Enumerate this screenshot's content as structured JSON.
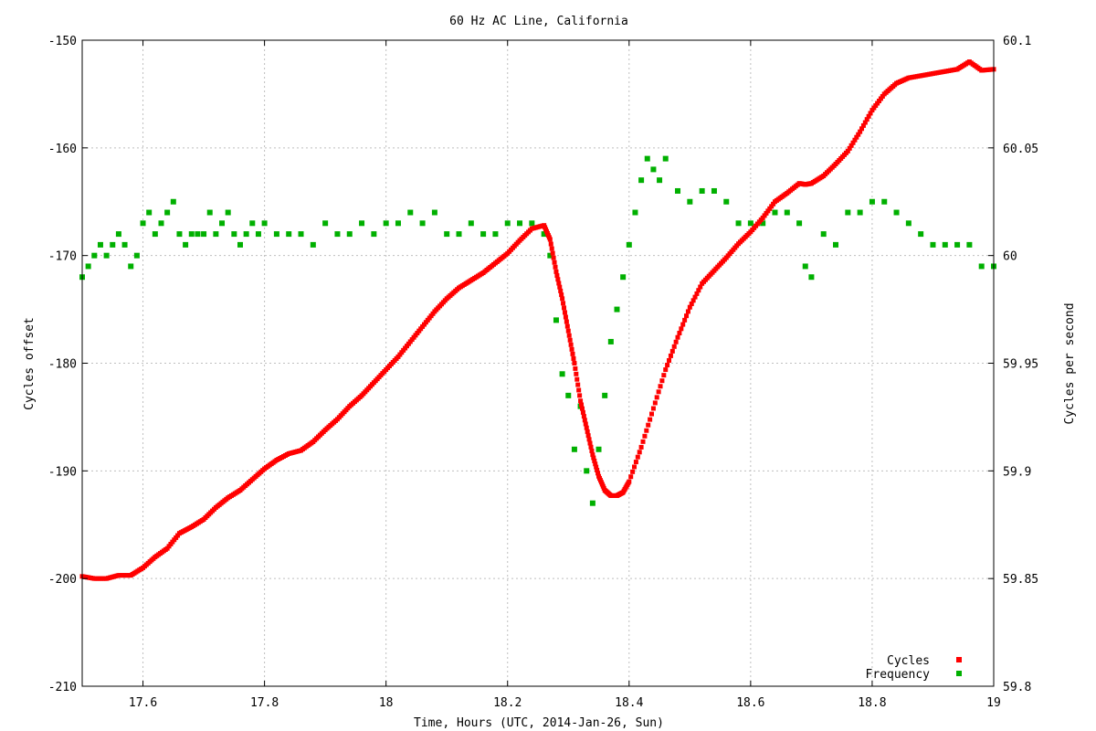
{
  "chart_data": {
    "type": "scatter",
    "title": "60 Hz AC Line, California",
    "xlabel": "Time, Hours (UTC, 2014-Jan-26, Sun)",
    "ylabel_left": "Cycles offset",
    "ylabel_right": "Cycles per second",
    "xlim": [
      17.5,
      19.0
    ],
    "ylim_left": [
      -210,
      -150
    ],
    "ylim_right": [
      59.8,
      60.1
    ],
    "x_ticks": [
      17.6,
      17.8,
      18.0,
      18.2,
      18.4,
      18.6,
      18.8,
      19.0
    ],
    "x_tick_labels": [
      "17.6",
      "17.8",
      "18",
      "18.2",
      "18.4",
      "18.6",
      "18.8",
      "19"
    ],
    "y_left_ticks": [
      -210,
      -200,
      -190,
      -180,
      -170,
      -160,
      -150
    ],
    "y_left_tick_labels": [
      "-210",
      "-200",
      "-190",
      "-180",
      "-170",
      "-160",
      "-150"
    ],
    "y_right_ticks": [
      59.8,
      59.85,
      59.9,
      59.95,
      60.0,
      60.05,
      60.1
    ],
    "y_right_tick_labels": [
      "59.8",
      "59.85",
      "59.9",
      "59.95",
      "60",
      "60.05",
      "60.1"
    ],
    "grid": true,
    "legend_position": "bottom-right",
    "series": [
      {
        "name": "Cycles",
        "axis": "left",
        "color": "#ff0000",
        "x": [
          17.5,
          17.52,
          17.54,
          17.56,
          17.58,
          17.6,
          17.62,
          17.64,
          17.66,
          17.68,
          17.7,
          17.72,
          17.74,
          17.76,
          17.78,
          17.8,
          17.82,
          17.84,
          17.86,
          17.88,
          17.9,
          17.92,
          17.94,
          17.96,
          17.98,
          18.0,
          18.02,
          18.04,
          18.06,
          18.08,
          18.1,
          18.12,
          18.14,
          18.16,
          18.18,
          18.2,
          18.22,
          18.24,
          18.26,
          18.27,
          18.28,
          18.29,
          18.3,
          18.31,
          18.32,
          18.33,
          18.34,
          18.35,
          18.36,
          18.37,
          18.38,
          18.39,
          18.4,
          18.42,
          18.44,
          18.46,
          18.48,
          18.5,
          18.52,
          18.54,
          18.56,
          18.58,
          18.6,
          18.62,
          18.64,
          18.66,
          18.68,
          18.69,
          18.7,
          18.72,
          18.74,
          18.76,
          18.78,
          18.8,
          18.82,
          18.84,
          18.86,
          18.88,
          18.9,
          18.92,
          18.94,
          18.96,
          18.98,
          19.0
        ],
        "y": [
          -199.8,
          -200.0,
          -200.0,
          -199.7,
          -199.7,
          -199.0,
          -198.0,
          -197.2,
          -195.8,
          -195.2,
          -194.5,
          -193.4,
          -192.5,
          -191.8,
          -190.8,
          -189.8,
          -189.0,
          -188.4,
          -188.1,
          -187.3,
          -186.2,
          -185.2,
          -184.0,
          -183.0,
          -181.8,
          -180.6,
          -179.4,
          -178.0,
          -176.6,
          -175.2,
          -174.0,
          -173.0,
          -172.3,
          -171.6,
          -170.7,
          -169.8,
          -168.6,
          -167.5,
          -167.2,
          -168.5,
          -171.5,
          -174.0,
          -177.0,
          -180.0,
          -183.5,
          -186.0,
          -188.5,
          -190.5,
          -191.8,
          -192.3,
          -192.3,
          -192.0,
          -191.0,
          -187.8,
          -184.2,
          -180.6,
          -177.6,
          -174.8,
          -172.6,
          -171.4,
          -170.2,
          -168.9,
          -167.8,
          -166.5,
          -165.0,
          -164.2,
          -163.3,
          -163.4,
          -163.3,
          -162.6,
          -161.5,
          -160.3,
          -158.5,
          -156.5,
          -155.0,
          -154.0,
          -153.5,
          -153.3,
          -153.1,
          -152.9,
          -152.7,
          -152.0,
          -152.8,
          -152.7
        ]
      },
      {
        "name": "Frequency",
        "axis": "right",
        "color": "#00b000",
        "x": [
          17.5,
          17.51,
          17.52,
          17.53,
          17.54,
          17.55,
          17.56,
          17.57,
          17.58,
          17.59,
          17.6,
          17.61,
          17.62,
          17.63,
          17.64,
          17.65,
          17.66,
          17.67,
          17.68,
          17.69,
          17.7,
          17.71,
          17.72,
          17.73,
          17.74,
          17.75,
          17.76,
          17.77,
          17.78,
          17.79,
          17.8,
          17.82,
          17.84,
          17.86,
          17.88,
          17.9,
          17.92,
          17.94,
          17.96,
          17.98,
          18.0,
          18.02,
          18.04,
          18.06,
          18.08,
          18.1,
          18.12,
          18.14,
          18.16,
          18.18,
          18.2,
          18.22,
          18.24,
          18.26,
          18.27,
          18.28,
          18.29,
          18.3,
          18.31,
          18.32,
          18.33,
          18.34,
          18.35,
          18.36,
          18.37,
          18.38,
          18.39,
          18.4,
          18.41,
          18.42,
          18.43,
          18.44,
          18.45,
          18.46,
          18.48,
          18.5,
          18.52,
          18.54,
          18.56,
          18.58,
          18.6,
          18.62,
          18.64,
          18.66,
          18.68,
          18.69,
          18.7,
          18.72,
          18.74,
          18.76,
          18.78,
          18.8,
          18.82,
          18.84,
          18.86,
          18.88,
          18.9,
          18.92,
          18.94,
          18.96,
          18.98,
          19.0
        ],
        "y": [
          59.99,
          59.995,
          60.0,
          60.005,
          60.0,
          60.005,
          60.01,
          60.005,
          59.995,
          60.0,
          60.015,
          60.02,
          60.01,
          60.015,
          60.02,
          60.025,
          60.01,
          60.005,
          60.01,
          60.01,
          60.01,
          60.02,
          60.01,
          60.015,
          60.02,
          60.01,
          60.005,
          60.01,
          60.015,
          60.01,
          60.015,
          60.01,
          60.01,
          60.01,
          60.005,
          60.015,
          60.01,
          60.01,
          60.015,
          60.01,
          60.015,
          60.015,
          60.02,
          60.015,
          60.02,
          60.01,
          60.01,
          60.015,
          60.01,
          60.01,
          60.015,
          60.015,
          60.015,
          60.01,
          60.0,
          59.97,
          59.945,
          59.935,
          59.91,
          59.93,
          59.9,
          59.885,
          59.91,
          59.935,
          59.96,
          59.975,
          59.99,
          60.005,
          60.02,
          60.035,
          60.045,
          60.04,
          60.035,
          60.045,
          60.03,
          60.025,
          60.03,
          60.03,
          60.025,
          60.015,
          60.015,
          60.015,
          60.02,
          60.02,
          60.015,
          59.995,
          59.99,
          60.01,
          60.005,
          60.02,
          60.02,
          60.025,
          60.025,
          60.02,
          60.015,
          60.01,
          60.005,
          60.005,
          60.005,
          60.005,
          59.995,
          59.995
        ]
      }
    ]
  }
}
